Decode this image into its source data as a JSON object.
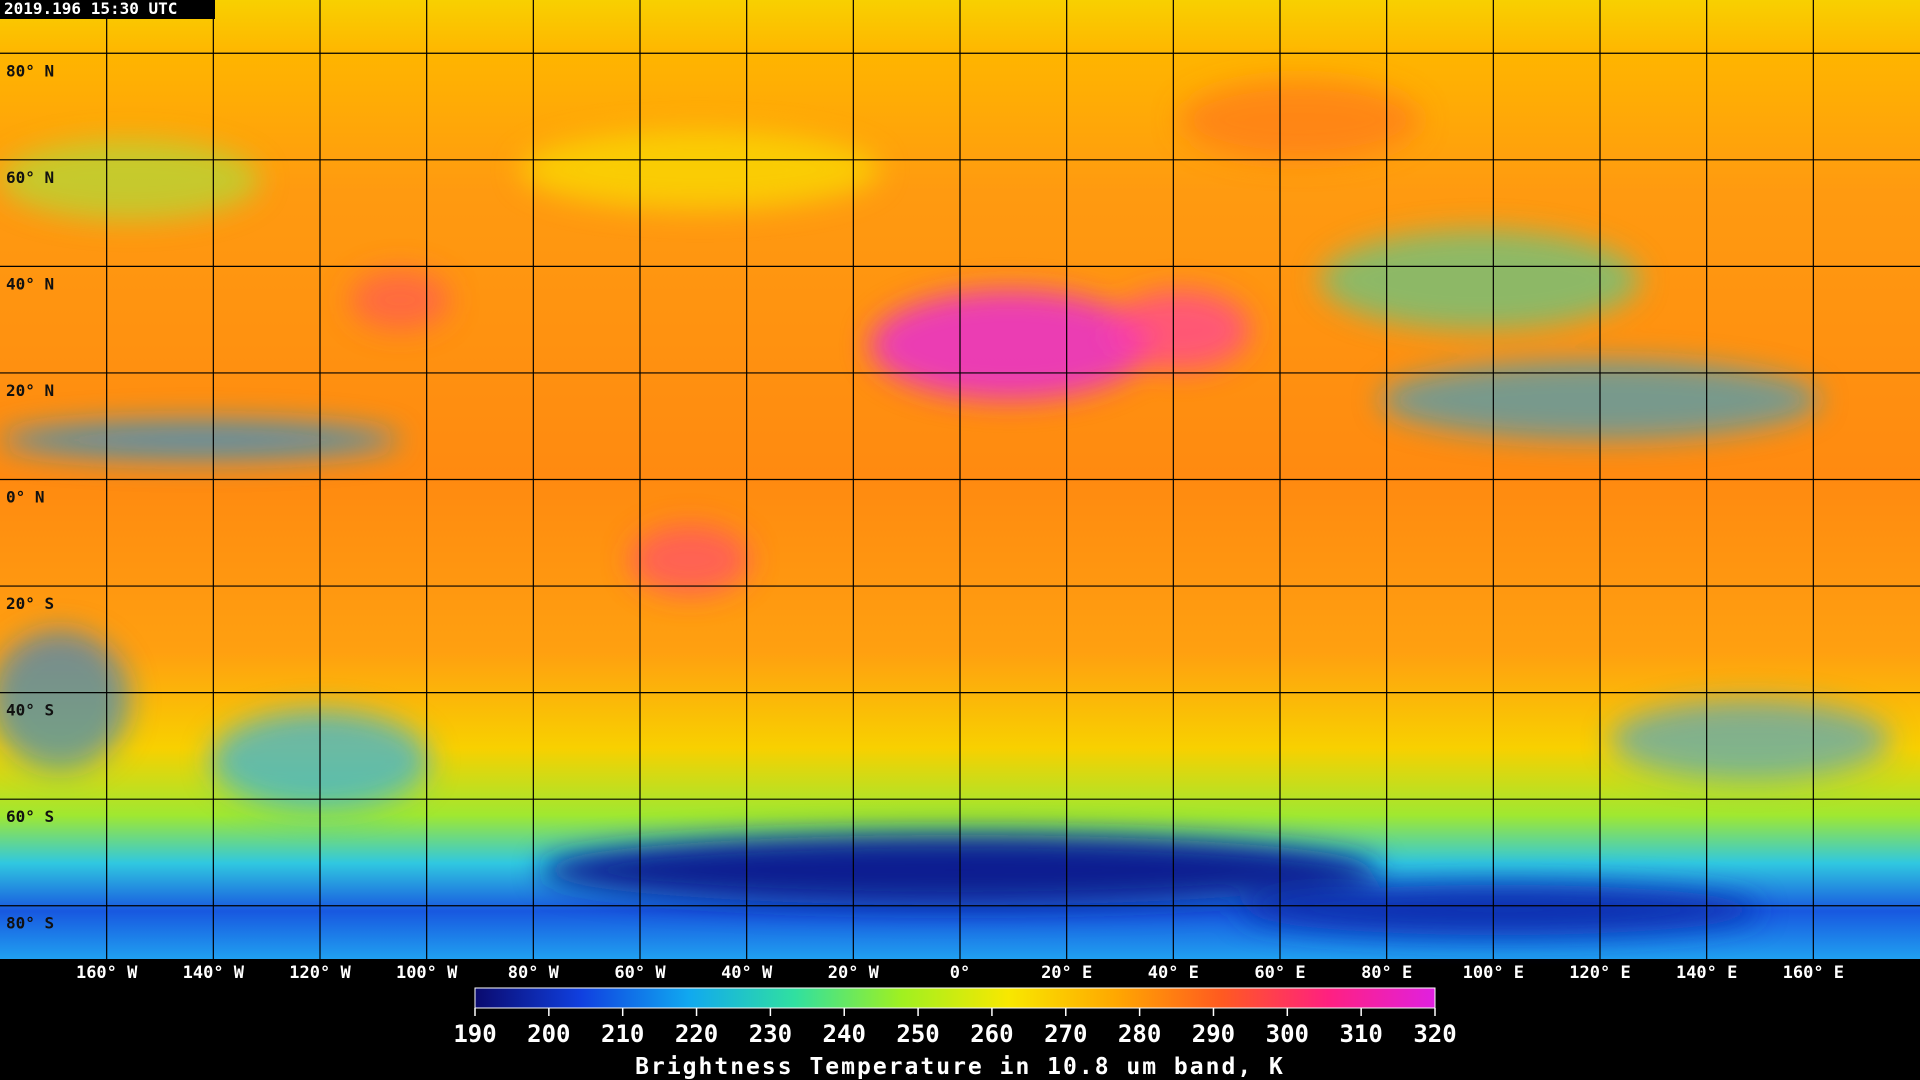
{
  "timestamp": "2019.196 15:30 UTC",
  "map": {
    "lon_range": [
      -180,
      180
    ],
    "lat_range": [
      -90,
      90
    ],
    "lat_lines": [
      {
        "value": 80,
        "label": "80° N"
      },
      {
        "value": 60,
        "label": "60° N"
      },
      {
        "value": 40,
        "label": "40° N"
      },
      {
        "value": 20,
        "label": "20° N"
      },
      {
        "value": 0,
        "label": "0° N"
      },
      {
        "value": -20,
        "label": "20° S"
      },
      {
        "value": -40,
        "label": "40° S"
      },
      {
        "value": -60,
        "label": "60° S"
      },
      {
        "value": -80,
        "label": "80° S"
      }
    ],
    "lon_lines": [
      {
        "value": -160,
        "label": "160° W"
      },
      {
        "value": -140,
        "label": "140° W"
      },
      {
        "value": -120,
        "label": "120° W"
      },
      {
        "value": -100,
        "label": "100° W"
      },
      {
        "value": -80,
        "label": "80° W"
      },
      {
        "value": -60,
        "label": "60° W"
      },
      {
        "value": -40,
        "label": "40° W"
      },
      {
        "value": -20,
        "label": "20° W"
      },
      {
        "value": 0,
        "label": "0°"
      },
      {
        "value": 20,
        "label": "20° E"
      },
      {
        "value": 40,
        "label": "40° E"
      },
      {
        "value": 60,
        "label": "60° E"
      },
      {
        "value": 80,
        "label": "80° E"
      },
      {
        "value": 100,
        "label": "100° E"
      },
      {
        "value": 120,
        "label": "120° E"
      },
      {
        "value": 140,
        "label": "140° E"
      },
      {
        "value": 160,
        "label": "160° E"
      }
    ]
  },
  "colorbar": {
    "range": [
      190,
      320
    ],
    "ticks": [
      190,
      200,
      210,
      220,
      230,
      240,
      250,
      260,
      270,
      280,
      290,
      300,
      310,
      320
    ],
    "colors": [
      "#0a0a6e",
      "#1040e0",
      "#10a8f0",
      "#30e0a0",
      "#a0f020",
      "#f8e800",
      "#ffa800",
      "#ff5a20",
      "#ff2080",
      "#e020e0"
    ],
    "title": "Brightness Temperature in 10.8 um band, K"
  }
}
